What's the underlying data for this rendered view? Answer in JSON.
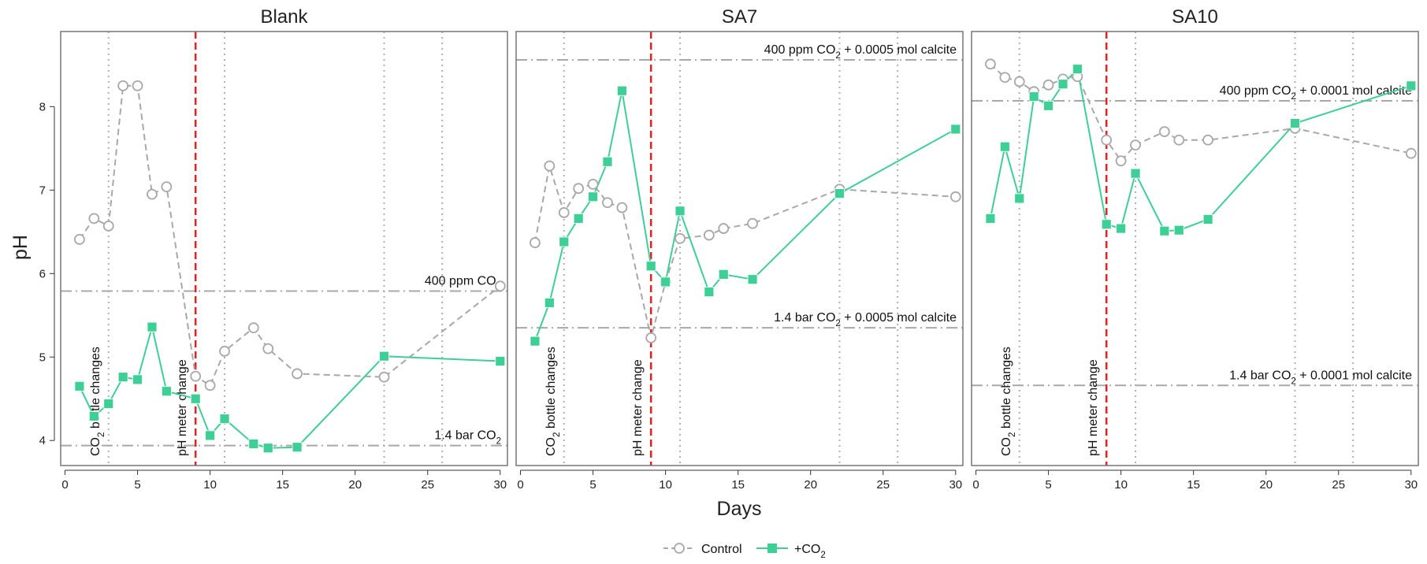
{
  "figure": {
    "xlabel": "Days",
    "ylabel": "pH",
    "legend": {
      "placement": "bottom-center",
      "items": [
        {
          "label": "Control",
          "sub": "",
          "marker": "open-circle",
          "line": "dashed"
        },
        {
          "label": "+CO",
          "sub": "2",
          "marker": "filled-square",
          "line": "solid"
        }
      ]
    }
  },
  "colors": {
    "control": "#a8a8a8",
    "co2": "#3ecf97",
    "meter_line": "#e8201f",
    "reference_line": "#a8a8a8",
    "event_line": "#b0b0b0",
    "frame": "#777777"
  },
  "chart_data": [
    {
      "type": "line",
      "title": "Blank",
      "xlabel": "Days",
      "ylabel": "pH",
      "xlim": [
        -0.3,
        30.5
      ],
      "ylim": [
        3.7,
        8.9
      ],
      "xticks": [
        0,
        5,
        10,
        15,
        20,
        25,
        30
      ],
      "yticks": [
        4,
        5,
        6,
        7,
        8
      ],
      "grid": false,
      "series": [
        {
          "name": "Control",
          "key": "control",
          "x": [
            1,
            2,
            3,
            4,
            5,
            6,
            7,
            9,
            10,
            11,
            13,
            14,
            16,
            22,
            30
          ],
          "y": [
            6.41,
            6.66,
            6.57,
            8.25,
            8.25,
            6.95,
            7.04,
            4.77,
            4.66,
            5.07,
            5.35,
            5.1,
            4.8,
            4.76,
            5.85
          ]
        },
        {
          "name": "+CO2",
          "key": "co2",
          "x": [
            1,
            2,
            3,
            4,
            5,
            6,
            7,
            9,
            10,
            11,
            13,
            14,
            16,
            22,
            30
          ],
          "y": [
            4.65,
            4.29,
            4.44,
            4.76,
            4.73,
            5.36,
            4.59,
            4.5,
            4.06,
            4.26,
            3.96,
            3.91,
            3.92,
            5.01,
            4.95
          ]
        }
      ],
      "reference_lines": [
        {
          "y": 5.79,
          "label": "400 ppm CO",
          "sub": "2",
          "suffix": "",
          "label_pos": "above"
        },
        {
          "y": 3.94,
          "label": "1.4 bar CO",
          "sub": "2",
          "suffix": "",
          "label_pos": "above"
        }
      ],
      "event_lines": [
        3,
        11,
        22,
        26
      ],
      "meter_line": 9,
      "vertical_labels": [
        {
          "x": 2.35,
          "text": "CO",
          "sub": "2",
          "suffix": " bottle changes"
        },
        {
          "x": 8.35,
          "text": "pH meter change",
          "sub": "",
          "suffix": ""
        }
      ]
    },
    {
      "type": "line",
      "title": "SA7",
      "xlabel": "Days",
      "ylabel": "pH",
      "xlim": [
        -0.3,
        30.5
      ],
      "ylim": [
        3.7,
        8.9
      ],
      "xticks": [
        0,
        5,
        10,
        15,
        20,
        25,
        30
      ],
      "yticks": [
        4,
        5,
        6,
        7,
        8
      ],
      "grid": false,
      "series": [
        {
          "name": "Control",
          "key": "control",
          "x": [
            1,
            2,
            3,
            4,
            5,
            6,
            7,
            9,
            10,
            11,
            13,
            14,
            16,
            22,
            30
          ],
          "y": [
            6.37,
            7.29,
            6.73,
            7.02,
            7.07,
            6.85,
            6.79,
            5.23,
            5.9,
            6.42,
            6.46,
            6.54,
            6.6,
            7.01,
            6.92
          ]
        },
        {
          "name": "+CO2",
          "key": "co2",
          "x": [
            1,
            2,
            3,
            4,
            5,
            6,
            7,
            9,
            10,
            11,
            13,
            14,
            16,
            22,
            30
          ],
          "y": [
            5.19,
            5.65,
            6.38,
            6.66,
            6.92,
            7.34,
            8.19,
            6.09,
            5.9,
            6.75,
            5.78,
            5.99,
            5.93,
            6.96,
            7.73
          ]
        }
      ],
      "reference_lines": [
        {
          "y": 8.56,
          "label": "400 ppm CO",
          "sub": "2",
          "suffix": " + 0.0005 mol calcite",
          "label_pos": "above"
        },
        {
          "y": 5.35,
          "label": "1.4 bar CO",
          "sub": "2",
          "suffix": " + 0.0005 mol calcite",
          "label_pos": "above"
        }
      ],
      "event_lines": [
        3,
        11,
        22,
        26
      ],
      "meter_line": 9,
      "vertical_labels": [
        {
          "x": 2.35,
          "text": "CO",
          "sub": "2",
          "suffix": " bottle changes"
        },
        {
          "x": 8.35,
          "text": "pH meter change",
          "sub": "",
          "suffix": ""
        }
      ]
    },
    {
      "type": "line",
      "title": "SA10",
      "xlabel": "Days",
      "ylabel": "pH",
      "xlim": [
        -0.3,
        30.5
      ],
      "ylim": [
        3.7,
        8.9
      ],
      "xticks": [
        0,
        5,
        10,
        15,
        20,
        25,
        30
      ],
      "yticks": [
        4,
        5,
        6,
        7,
        8
      ],
      "grid": false,
      "series": [
        {
          "name": "Control",
          "key": "control",
          "x": [
            1,
            2,
            3,
            4,
            5,
            6,
            7,
            9,
            10,
            11,
            13,
            14,
            16,
            22,
            30
          ],
          "y": [
            8.51,
            8.35,
            8.3,
            8.18,
            8.26,
            8.33,
            8.36,
            7.6,
            7.35,
            7.54,
            7.7,
            7.6,
            7.6,
            7.74,
            7.44
          ]
        },
        {
          "name": "+CO2",
          "key": "co2",
          "x": [
            1,
            2,
            3,
            4,
            5,
            6,
            7,
            9,
            10,
            11,
            13,
            14,
            16,
            22,
            30
          ],
          "y": [
            6.66,
            7.52,
            6.9,
            8.12,
            8.01,
            8.27,
            8.45,
            6.59,
            6.54,
            7.2,
            6.51,
            6.52,
            6.65,
            7.8,
            8.25
          ]
        }
      ],
      "reference_lines": [
        {
          "y": 8.07,
          "label": "400 ppm CO",
          "sub": "2",
          "suffix": " + 0.0001 mol calcite",
          "label_pos": "above"
        },
        {
          "y": 4.66,
          "label": "1.4 bar CO",
          "sub": "2",
          "suffix": " + 0.0001 mol calcite",
          "label_pos": "above"
        }
      ],
      "event_lines": [
        3,
        11,
        22,
        26
      ],
      "meter_line": 9,
      "vertical_labels": [
        {
          "x": 2.35,
          "text": "CO",
          "sub": "2",
          "suffix": " bottle changes"
        },
        {
          "x": 8.35,
          "text": "pH meter change",
          "sub": "",
          "suffix": ""
        }
      ]
    }
  ]
}
